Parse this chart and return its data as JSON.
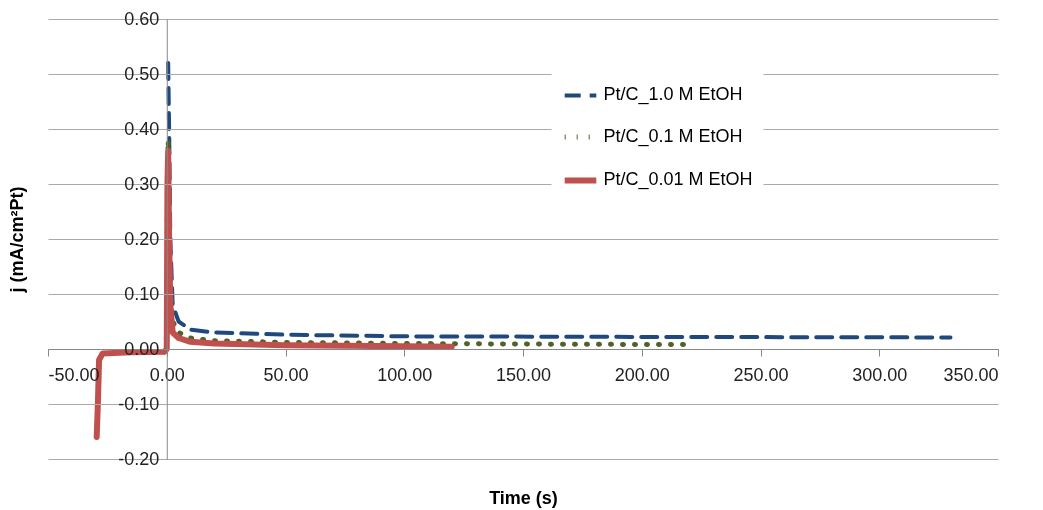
{
  "chart_data": {
    "type": "line",
    "xlabel": "Time (s)",
    "ylabel": "j (mA/cm²Pt)",
    "xlim": [
      -50,
      350
    ],
    "ylim": [
      -0.2,
      0.6
    ],
    "xticks": [
      {
        "value": -50,
        "label": "-50.00"
      },
      {
        "value": 0,
        "label": "0.00"
      },
      {
        "value": 50,
        "label": "50.00"
      },
      {
        "value": 100,
        "label": "100.00"
      },
      {
        "value": 150,
        "label": "150.00"
      },
      {
        "value": 200,
        "label": "200.00"
      },
      {
        "value": 250,
        "label": "250.00"
      },
      {
        "value": 300,
        "label": "300.00"
      },
      {
        "value": 350,
        "label": "350.00"
      }
    ],
    "yticks": [
      {
        "value": -0.2,
        "label": "-0.20"
      },
      {
        "value": -0.1,
        "label": "-0.10"
      },
      {
        "value": 0,
        "label": "0.00"
      },
      {
        "value": 0.1,
        "label": "0.10"
      },
      {
        "value": 0.2,
        "label": "0.20"
      },
      {
        "value": 0.3,
        "label": "0.30"
      },
      {
        "value": 0.4,
        "label": "0.40"
      },
      {
        "value": 0.5,
        "label": "0.50"
      },
      {
        "value": 0.6,
        "label": "0.60"
      }
    ],
    "grid": "y",
    "legend": "top right",
    "series": [
      {
        "name": "Pt/C_1.0 M EtOH",
        "color": "#1f497d",
        "line_style": "dashed",
        "x": [
          0.6,
          1,
          1.5,
          2.5,
          5,
          10,
          20,
          50,
          100,
          200,
          330
        ],
        "values": [
          0.52,
          0.4,
          0.2,
          0.08,
          0.05,
          0.035,
          0.03,
          0.026,
          0.023,
          0.022,
          0.021
        ]
      },
      {
        "name": "Pt/C_0.1 M EtOH",
        "color": "#4f6228",
        "line_style": "dotted",
        "x": [
          -1,
          0,
          0.3,
          0.6,
          1,
          1.5,
          2.5,
          5,
          10,
          20,
          50,
          100,
          150,
          220
        ],
        "values": [
          -0.005,
          0,
          0.3,
          0.38,
          0.25,
          0.12,
          0.05,
          0.03,
          0.02,
          0.015,
          0.012,
          0.01,
          0.009,
          0.008
        ]
      },
      {
        "name": "Pt/C_0.01 M EtOH",
        "color": "#c0504d",
        "line_style": "solid",
        "x": [
          -29.5,
          -29,
          -28.5,
          -27,
          -15,
          -1,
          0,
          0.3,
          0.6,
          1,
          1.5,
          2.5,
          5,
          10,
          20,
          50,
          100,
          120
        ],
        "values": [
          -0.16,
          -0.1,
          -0.02,
          -0.008,
          -0.006,
          -0.005,
          0,
          0.3,
          0.36,
          0.2,
          0.08,
          0.03,
          0.02,
          0.013,
          0.01,
          0.007,
          0.005,
          0.004
        ]
      }
    ]
  }
}
